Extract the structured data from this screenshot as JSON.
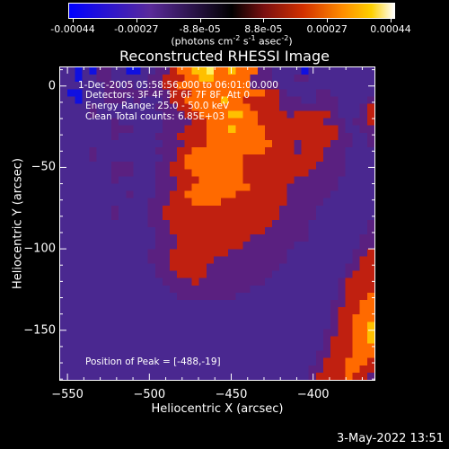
{
  "colorbar": {
    "labels": [
      "-0.00044",
      "-0.00027",
      "-8.8e-05",
      "8.8e-05",
      "0.00027",
      "0.00044"
    ],
    "units_prefix": "(photons cm",
    "units_exp1": "-2",
    "units_mid": " s",
    "units_exp2": "-1",
    "units_mid2": " asec",
    "units_exp3": "-2",
    "units_suffix": ")"
  },
  "annotations": {
    "time": "1-Dec-2005 05:58:56.000 to 06:01:00.000",
    "detectors": "Detectors: 3F 4F 5F 6F 7F 8F, Att 0",
    "energy": "Energy Range: 25.0 - 50.0 keV",
    "clean": "Clean     Total counts: 6.85E+03",
    "peak": "Position of Peak = [-488,-19]"
  },
  "timestamp": "3-May-2022 13:51",
  "chart_data": {
    "type": "heatmap",
    "title": "Reconstructed RHESSI Image",
    "xlabel": "Heliocentric X (arcsec)",
    "ylabel": "Heliocentric Y (arcsec)",
    "xlim": [
      -555,
      -362
    ],
    "ylim": [
      -181,
      12
    ],
    "xticks": [
      -550,
      -500,
      -450,
      -400
    ],
    "yticks": [
      0,
      -50,
      -100,
      -150
    ],
    "zlim": [
      -0.00044,
      0.00044
    ],
    "colormap": [
      "#0000ff",
      "#5a2a9a",
      "#000000",
      "#7a1010",
      "#d23000",
      "#ff8c00",
      "#ffd000",
      "#ffffff"
    ],
    "grid": false,
    "peak": [
      -488,
      -19
    ],
    "rows": [
      "bbabaccbbaabbccdeeffgeefeeeccbbbbabbbbbbbbb",
      "bbabbccbbbbbccdddeeffeeeeecccbbbccbbbbbbbbb",
      "bbbbbbccbcbbccddeeeeeeeeeeccccbbbbbbbbbbbbb",
      "baabbbcccccccccdddeeeeeeeeeeddcbbbbccbbbbbb",
      "bbabbbcccbcbbbcddeeeeefeedddddcccbbcccbbbbc",
      "bbbbcbbbbbbbbcccddeeeeeeeeddddccccccccbbbcd",
      "bbbbcbbbbbbbbbcccddeeeeffeeddddcdddddcbbbcd",
      "bbbbbbbcbbbbbbccccddeeeeeeedddddddddcccbccd",
      "bbbbbbbcccbbbbcccdddeeefeeeeddddddddddcbbcc",
      "bbbbbbbcbbbbbcccddddeeeeeeeeddddddddddccbbc",
      "bbbbbbbbbbbbbbcccdddeeeeeeeeedddcddddcccbbc",
      "bbbbcbbbbbbbbcccddeeeeeeeeeeddddcdddcccbbbb",
      "bbbbcbbbbbbbbbccdeeeeeeeedddddddddddcccbbbb",
      "bbbbbbbcccbbbccddeeeeeeeeddddddddddccccbbbb",
      "bbbbbbbcccbbbccdddeeeeeeedddddddddcccccbbbb",
      "bbbbbbbcbbbbbcccdddeeeeeedddddddccccccbbbbb",
      "bbbbbbbbbbbbbcccddeeeeeeeedddddcccccccbbbbb",
      "bbbbbbbbbcbbbccddeeeeeeedddddddccccccbbbbbb",
      "bbbbbbbbbbbbcccdddeeeedddddddddcccccbbbbbbb",
      "bbbbbbbcbbbbccddddddddddddddddcccccbbbbbbbb",
      "bbbbbbbcbbbbccddddddddddddddddcccccbbbbbbbb",
      "bbbbbbbbbbbbcccddddddddddddddcccccbbbbbbbbc",
      "bbbbbbbbbbbbbccdddddddddddddccccccbbbbbbbbc",
      "bbbbbbbbbbbbbcccddddddddddccccccccbbbbbbbcc",
      "bbbbbbbbbbbbbcccdddddddddcccccccbbbbbbbbbcc",
      "bbbbbbbbbbbbcccddddddddccccccccbbbbbbbbbccd",
      "bbbbbbbbbbbbcccddddddccccccccccbbbbbbbbbcdd",
      "bbbbbbbbbbbbbccdddddccccccccccbbbbbbbbbccdd",
      "bbbbbbbbbbbbbcccddddcccccccccbbbbbbbbbbcddd",
      "bbbbbbbbbbbbbbccccdcccccccccbbbbbbbbbbcdddd",
      "bbbbbbbbbbbbbbbcccccccccccbbbbbbbbbbbbcdddd",
      "bbbbbbbbbbbbbbbbccccccccbbbbbbbbbbbbbbcddde",
      "bbbbbbbbbbbbbbbbbbbbbbbbbbbbbbbbbbbbbccddee",
      "bbbbbbbbbbbbbbbbbbbbbbbbbbbbbbbbbbbbbcdddee",
      "bbbbbbbbbbbbbbbbbbbbbbbbbbbbbbbbbbbbbcddeee",
      "bbbbbbbbbbbbbbbbbbbbbbbbbbbbbbbbbbbbbcddeef",
      "bbbbbbbbbbbbbbbbbbbbbbbbbbbbbbbbbbbbccddeef",
      "bbbbbbbbbbbbbbbbbbbbbbbbbbbbbbbbbbbbcdddeef",
      "bbbbbbbbbbbbbbbbbbbbbbbbbbbbbbbbbbbbcdddeee",
      "bbbbbbbbbbbbbbbbbbbbbbbbbbbbbbbbbbbccdddeee",
      "bbbbbbbbbbbbbbbbbbbbbbbbbbbbbbbbbbbcdddeeed",
      "bbbbbbbbbbbbbbbbbbbbbbbbbbbbbbbbbbccdddeedd",
      "bbbbbbbbbbbbbbbbbbbbbbbbbbbbbbbbbbcddddeddc"
    ]
  }
}
